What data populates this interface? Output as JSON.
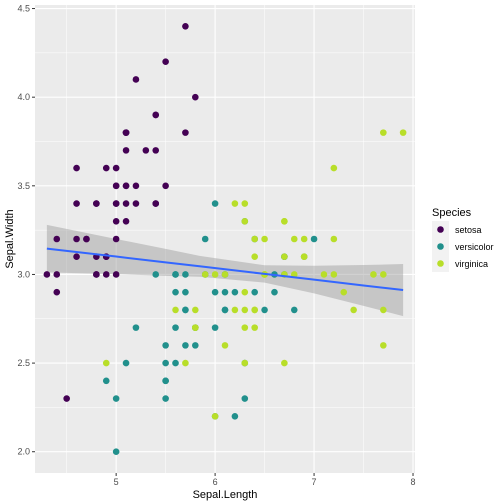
{
  "chart_data": {
    "type": "scatter",
    "xlabel": "Sepal.Length",
    "ylabel": "Sepal.Width",
    "xlim": [
      4.18,
      8.02
    ],
    "ylim": [
      1.88,
      4.52
    ],
    "x_ticks": [
      "5",
      "6",
      "7",
      "8"
    ],
    "y_ticks": [
      "2.0",
      "2.5",
      "3.0",
      "3.5",
      "4.0",
      "4.5"
    ],
    "x_tick_values": [
      5,
      6,
      7,
      8
    ],
    "y_tick_values": [
      2.0,
      2.5,
      3.0,
      3.5,
      4.0,
      4.5
    ],
    "grid": true,
    "legend_title": "Species",
    "legend_position": "right",
    "series": [
      {
        "name": "setosa",
        "color": "#440154",
        "points": [
          [
            5.1,
            3.5
          ],
          [
            4.9,
            3.0
          ],
          [
            4.7,
            3.2
          ],
          [
            4.6,
            3.1
          ],
          [
            5.0,
            3.6
          ],
          [
            5.4,
            3.9
          ],
          [
            4.6,
            3.4
          ],
          [
            5.0,
            3.4
          ],
          [
            4.4,
            2.9
          ],
          [
            4.9,
            3.1
          ],
          [
            5.4,
            3.7
          ],
          [
            4.8,
            3.4
          ],
          [
            4.8,
            3.0
          ],
          [
            4.3,
            3.0
          ],
          [
            5.8,
            4.0
          ],
          [
            5.7,
            4.4
          ],
          [
            5.4,
            3.9
          ],
          [
            5.1,
            3.5
          ],
          [
            5.7,
            3.8
          ],
          [
            5.1,
            3.8
          ],
          [
            5.4,
            3.4
          ],
          [
            5.1,
            3.7
          ],
          [
            4.6,
            3.6
          ],
          [
            5.1,
            3.3
          ],
          [
            4.8,
            3.4
          ],
          [
            5.0,
            3.0
          ],
          [
            5.0,
            3.4
          ],
          [
            5.2,
            3.5
          ],
          [
            5.2,
            3.4
          ],
          [
            4.7,
            3.2
          ],
          [
            4.8,
            3.1
          ],
          [
            5.4,
            3.4
          ],
          [
            5.2,
            4.1
          ],
          [
            5.5,
            4.2
          ],
          [
            4.9,
            3.1
          ],
          [
            5.0,
            3.2
          ],
          [
            5.5,
            3.5
          ],
          [
            4.9,
            3.6
          ],
          [
            4.4,
            3.0
          ],
          [
            5.1,
            3.4
          ],
          [
            5.0,
            3.5
          ],
          [
            4.5,
            2.3
          ],
          [
            4.4,
            3.2
          ],
          [
            5.0,
            3.5
          ],
          [
            5.1,
            3.8
          ],
          [
            4.8,
            3.0
          ],
          [
            5.1,
            3.8
          ],
          [
            4.6,
            3.2
          ],
          [
            5.3,
            3.7
          ],
          [
            5.0,
            3.3
          ]
        ]
      },
      {
        "name": "versicolor",
        "color": "#21908C",
        "points": [
          [
            7.0,
            3.2
          ],
          [
            6.4,
            3.2
          ],
          [
            6.9,
            3.1
          ],
          [
            5.5,
            2.3
          ],
          [
            6.5,
            2.8
          ],
          [
            5.7,
            2.8
          ],
          [
            6.3,
            3.3
          ],
          [
            4.9,
            2.4
          ],
          [
            6.6,
            2.9
          ],
          [
            5.2,
            2.7
          ],
          [
            5.0,
            2.0
          ],
          [
            5.9,
            3.0
          ],
          [
            6.0,
            2.2
          ],
          [
            6.1,
            2.9
          ],
          [
            5.6,
            2.9
          ],
          [
            6.7,
            3.1
          ],
          [
            5.6,
            3.0
          ],
          [
            5.8,
            2.7
          ],
          [
            6.2,
            2.2
          ],
          [
            5.6,
            2.5
          ],
          [
            5.9,
            3.2
          ],
          [
            6.1,
            2.8
          ],
          [
            6.3,
            2.5
          ],
          [
            6.1,
            2.8
          ],
          [
            6.4,
            2.9
          ],
          [
            6.6,
            3.0
          ],
          [
            6.8,
            2.8
          ],
          [
            6.7,
            3.0
          ],
          [
            6.0,
            2.9
          ],
          [
            5.7,
            2.6
          ],
          [
            5.5,
            2.4
          ],
          [
            5.5,
            2.4
          ],
          [
            5.8,
            2.7
          ],
          [
            6.0,
            2.7
          ],
          [
            5.4,
            3.0
          ],
          [
            6.0,
            3.4
          ],
          [
            6.7,
            3.1
          ],
          [
            6.3,
            2.3
          ],
          [
            5.6,
            3.0
          ],
          [
            5.5,
            2.5
          ],
          [
            5.5,
            2.6
          ],
          [
            6.1,
            3.0
          ],
          [
            5.8,
            2.6
          ],
          [
            5.0,
            2.3
          ],
          [
            5.6,
            2.7
          ],
          [
            5.7,
            3.0
          ],
          [
            5.7,
            2.9
          ],
          [
            6.2,
            2.9
          ],
          [
            5.1,
            2.5
          ],
          [
            5.7,
            2.8
          ]
        ]
      },
      {
        "name": "virginica",
        "color": "#B8DE29",
        "points": [
          [
            6.3,
            3.3
          ],
          [
            5.8,
            2.7
          ],
          [
            7.1,
            3.0
          ],
          [
            6.3,
            2.9
          ],
          [
            6.5,
            3.0
          ],
          [
            7.6,
            3.0
          ],
          [
            4.9,
            2.5
          ],
          [
            7.3,
            2.9
          ],
          [
            6.7,
            2.5
          ],
          [
            7.2,
            3.6
          ],
          [
            6.5,
            3.2
          ],
          [
            6.4,
            2.7
          ],
          [
            6.8,
            3.0
          ],
          [
            5.7,
            2.5
          ],
          [
            5.8,
            2.8
          ],
          [
            6.4,
            3.2
          ],
          [
            6.5,
            3.0
          ],
          [
            7.7,
            3.8
          ],
          [
            7.7,
            2.6
          ],
          [
            6.0,
            2.2
          ],
          [
            6.9,
            3.2
          ],
          [
            5.6,
            2.8
          ],
          [
            7.7,
            2.8
          ],
          [
            6.3,
            2.7
          ],
          [
            6.7,
            3.3
          ],
          [
            7.2,
            3.2
          ],
          [
            6.2,
            2.8
          ],
          [
            6.1,
            3.0
          ],
          [
            6.4,
            2.8
          ],
          [
            7.2,
            3.0
          ],
          [
            7.4,
            2.8
          ],
          [
            7.9,
            3.8
          ],
          [
            6.4,
            2.8
          ],
          [
            6.3,
            2.8
          ],
          [
            6.1,
            2.6
          ],
          [
            7.7,
            3.0
          ],
          [
            6.3,
            3.4
          ],
          [
            6.4,
            3.1
          ],
          [
            6.0,
            3.0
          ],
          [
            6.9,
            3.1
          ],
          [
            6.7,
            3.1
          ],
          [
            6.9,
            3.1
          ],
          [
            5.8,
            2.7
          ],
          [
            6.8,
            3.2
          ],
          [
            6.7,
            3.3
          ],
          [
            6.7,
            3.0
          ],
          [
            6.3,
            2.5
          ],
          [
            6.5,
            3.0
          ],
          [
            6.2,
            3.4
          ],
          [
            5.9,
            3.0
          ]
        ]
      }
    ],
    "trend": {
      "method": "lm",
      "color": "#3366FF",
      "band_color": "#999999",
      "x": [
        4.3,
        5.0,
        5.5,
        5.843,
        6.5,
        7.0,
        7.5,
        7.9
      ],
      "y": [
        3.146,
        3.101,
        3.068,
        3.046,
        3.003,
        2.971,
        2.938,
        2.912
      ],
      "y_lower": [
        3.012,
        3.002,
        2.992,
        2.987,
        2.954,
        2.893,
        2.823,
        2.765
      ],
      "y_upper": [
        3.28,
        3.2,
        3.144,
        3.105,
        3.052,
        3.049,
        3.053,
        3.059
      ]
    },
    "panel_background": "#EBEBEB",
    "grid_color": "#FFFFFF"
  }
}
